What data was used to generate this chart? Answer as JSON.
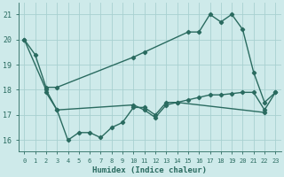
{
  "series": [
    {
      "x": [
        0,
        1,
        2,
        3,
        10,
        11,
        15,
        16,
        17,
        18,
        19,
        20,
        21,
        22,
        23
      ],
      "y": [
        20.0,
        19.4,
        18.1,
        18.1,
        19.3,
        19.5,
        20.3,
        20.3,
        21.0,
        20.7,
        21.0,
        20.4,
        18.7,
        17.5,
        17.9
      ],
      "color": "#2a6b60",
      "marker": "D",
      "markersize": 2.2,
      "linewidth": 1.0
    },
    {
      "x": [
        0,
        2,
        3,
        10,
        11,
        12,
        13,
        14,
        15,
        16,
        17,
        18,
        19,
        20,
        21,
        22,
        23
      ],
      "y": [
        20.0,
        18.0,
        17.2,
        17.4,
        17.2,
        16.9,
        17.4,
        17.5,
        17.6,
        17.7,
        17.8,
        17.8,
        17.85,
        17.9,
        17.9,
        17.2,
        17.9
      ],
      "color": "#2a6b60",
      "marker": "D",
      "markersize": 2.2,
      "linewidth": 1.0
    },
    {
      "x": [
        2,
        3,
        4,
        5,
        6,
        7,
        8,
        9,
        10,
        11,
        12,
        13,
        14,
        22
      ],
      "y": [
        17.9,
        17.2,
        16.0,
        16.3,
        16.3,
        16.1,
        16.5,
        16.7,
        17.3,
        17.3,
        17.0,
        17.5,
        17.5,
        17.1
      ],
      "color": "#2a6b60",
      "marker": "D",
      "markersize": 2.2,
      "linewidth": 1.0
    }
  ],
  "xlim": [
    -0.5,
    23.5
  ],
  "ylim": [
    15.55,
    21.45
  ],
  "yticks": [
    16,
    17,
    18,
    19,
    20,
    21
  ],
  "xticks": [
    0,
    1,
    2,
    3,
    4,
    5,
    6,
    7,
    8,
    9,
    10,
    11,
    12,
    13,
    14,
    15,
    16,
    17,
    18,
    19,
    20,
    21,
    22,
    23
  ],
  "xlabel": "Humidex (Indice chaleur)",
  "bg_color": "#ceeaea",
  "grid_color": "#a8d0d0",
  "line_color": "#2a6b60",
  "tick_color": "#2a6b60",
  "label_color": "#2a6b60"
}
